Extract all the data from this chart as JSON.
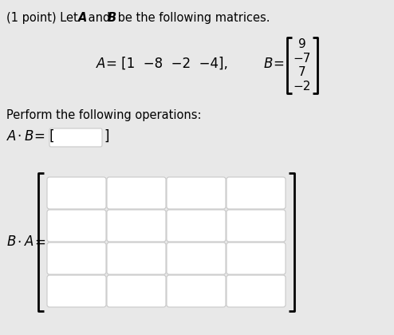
{
  "background_color": "#e8e8e8",
  "matrix_B_values": [
    "9",
    "−7",
    "7",
    "−2"
  ],
  "font_size_main": 10.5,
  "font_size_math": 12,
  "box_fill": "#ffffff",
  "box_edge": "#c8c8c8",
  "grid_rows": 4,
  "grid_cols": 4,
  "title_line": "(1 point) Let  A  and  B  be the following matrices.",
  "perform_text": "Perform the following operations:",
  "A_row": "A = [1   −8   −2   −4],",
  "B_eq": "B =",
  "AB_text": "A · B = [",
  "AB_close": "]",
  "BA_text": "B · A ="
}
